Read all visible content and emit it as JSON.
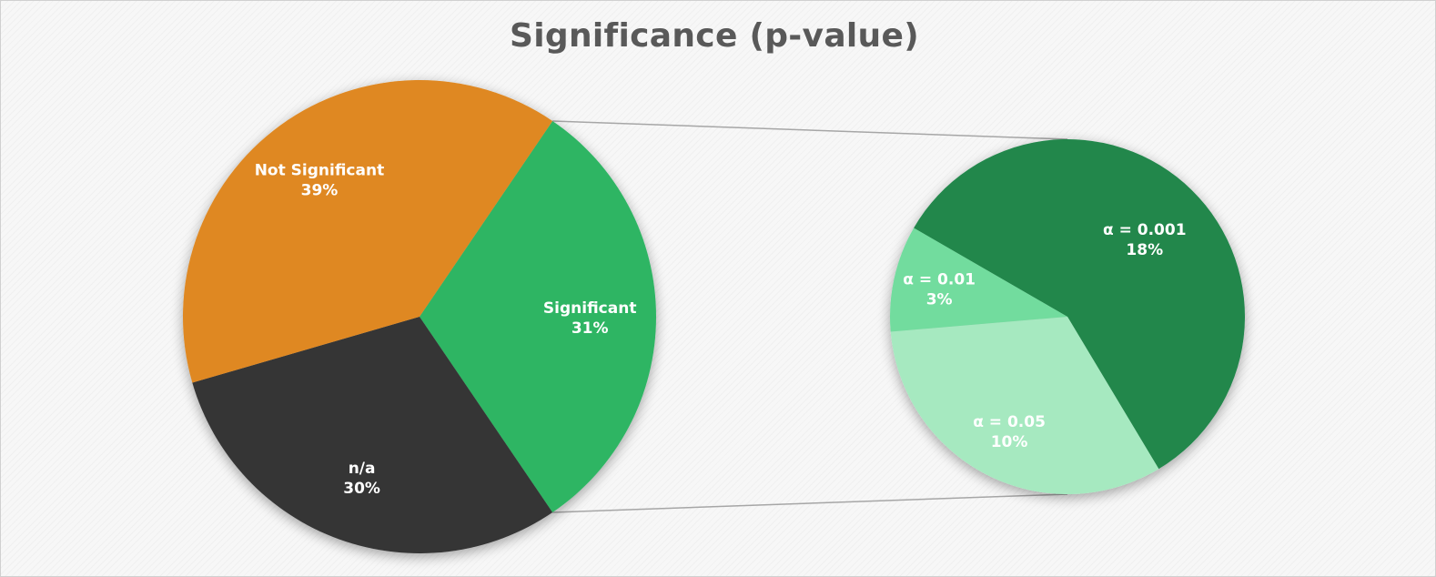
{
  "chart_data": {
    "type": "pie",
    "subtype": "pie-of-pie",
    "title": "Significance (p-value)",
    "main_pie": {
      "slices": [
        {
          "label": "Significant",
          "value": 31,
          "value_label": "31%",
          "color": "#2db563"
        },
        {
          "label": "n/a",
          "value": 30,
          "value_label": "30%",
          "color": "#343434"
        },
        {
          "label": "Not Significant",
          "value": 39,
          "value_label": "39%",
          "color": "#df8821"
        }
      ]
    },
    "secondary_pie": {
      "breakdown_of": "Significant",
      "slices": [
        {
          "label": "α = 0.001",
          "value": 18,
          "value_label": "18%",
          "color": "#21874c"
        },
        {
          "label": "α = 0.05",
          "value": 10,
          "value_label": "10%",
          "color": "#a6e9c0"
        },
        {
          "label": "α = 0.01",
          "value": 3,
          "value_label": "3%",
          "color": "#72dc9e"
        }
      ]
    },
    "legend": "none"
  }
}
